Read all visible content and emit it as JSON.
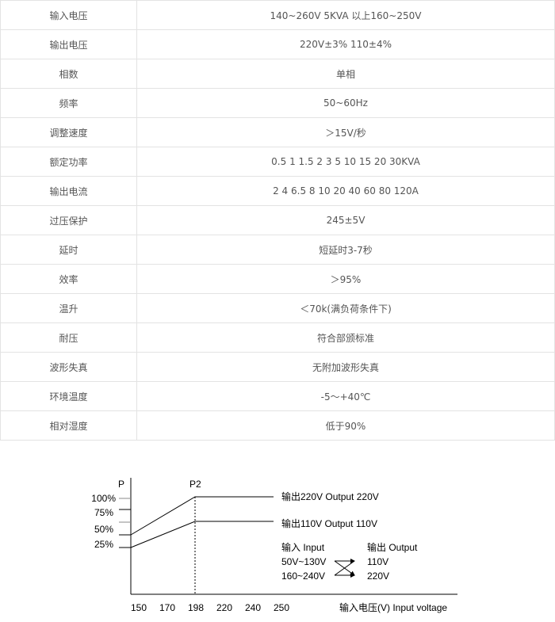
{
  "specs": [
    {
      "label": "输入电压",
      "value": "140~260V 5KVA 以上160~250V"
    },
    {
      "label": "输出电压",
      "value": "220V±3% 110±4%"
    },
    {
      "label": "相数",
      "value": "单相"
    },
    {
      "label": "频率",
      "value": "50~60Hz"
    },
    {
      "label": "调整速度",
      "value": "＞15V/秒"
    },
    {
      "label": "额定功率",
      "value": "0.5 1 1.5 2 3 5 10 15 20 30KVA"
    },
    {
      "label": "输出电流",
      "value": "2 4 6.5 8 10 20 40 60 80 120A"
    },
    {
      "label": "过压保护",
      "value": "245±5V"
    },
    {
      "label": "延时",
      "value": "短延时3-7秒"
    },
    {
      "label": "效率",
      "value": "＞95%"
    },
    {
      "label": "温升",
      "value": "＜70k(满负荷条件下)"
    },
    {
      "label": "耐压",
      "value": "符合部颁标准"
    },
    {
      "label": "波形失真",
      "value": "无附加波形失真"
    },
    {
      "label": "环境温度",
      "value": "-5～+40℃"
    },
    {
      "label": "相对湿度",
      "value": "低于90%"
    }
  ],
  "diagram": {
    "y_axis_label": "P",
    "y_ticks": [
      "100%",
      "75%",
      "50%",
      "25%"
    ],
    "x_ticks": [
      "150",
      "170",
      "198",
      "220",
      "240",
      "250"
    ],
    "x_axis_label": "输入电压(V) Input voltage",
    "point_label": "P2",
    "line_220": "输出220V  Output 220V",
    "line_110": "输出110V  Output 110V",
    "input_header": "输入 Input",
    "output_header": "输出 Output",
    "input_range_1": "50V~130V",
    "input_range_2": "160~240V",
    "output_1": "110V",
    "output_2": "220V"
  }
}
